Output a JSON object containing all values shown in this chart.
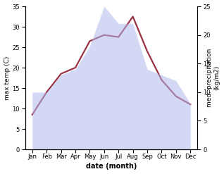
{
  "months": [
    "Jan",
    "Feb",
    "Mar",
    "Apr",
    "May",
    "Jun",
    "Jul",
    "Aug",
    "Sep",
    "Oct",
    "Nov",
    "Dec"
  ],
  "x": [
    0,
    1,
    2,
    3,
    4,
    5,
    6,
    7,
    8,
    9,
    10,
    11
  ],
  "temperature": [
    8.5,
    14.0,
    18.5,
    20.0,
    26.5,
    28.0,
    27.5,
    32.5,
    24.0,
    17.0,
    13.0,
    11.0
  ],
  "precipitation": [
    10.0,
    10.0,
    13.0,
    14.0,
    18.0,
    25.0,
    22.0,
    22.0,
    14.0,
    13.0,
    12.0,
    8.0
  ],
  "temp_color": "#993344",
  "precip_color": "#b0b8ee",
  "temp_ylim": [
    0,
    35
  ],
  "precip_ylim": [
    0,
    25
  ],
  "temp_yticks": [
    0,
    5,
    10,
    15,
    20,
    25,
    30,
    35
  ],
  "precip_yticks": [
    0,
    5,
    10,
    15,
    20,
    25
  ],
  "ylabel_left": "max temp (C)",
  "ylabel_right": "med. precipitation\n(kg/m2)",
  "xlabel": "date (month)",
  "bg_color": "#ffffff",
  "line_width": 1.6,
  "precip_alpha": 0.55,
  "tick_fontsize": 6,
  "label_fontsize": 6.5,
  "xlabel_fontsize": 7
}
